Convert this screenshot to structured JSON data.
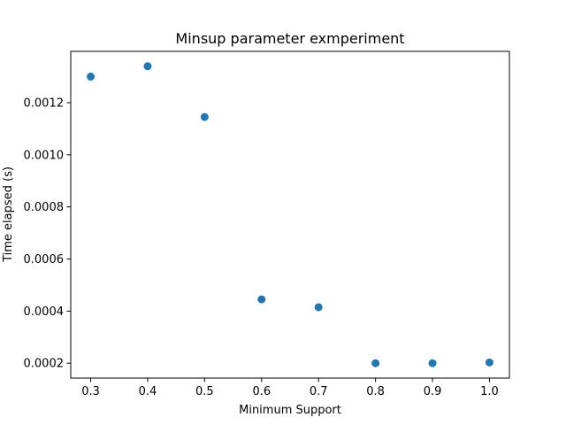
{
  "chart_data": {
    "type": "scatter",
    "title": "Minsup parameter exmperiment",
    "xlabel": "Minimum Support",
    "ylabel": "Time elapsed (s)",
    "x": [
      0.3,
      0.4,
      0.5,
      0.6,
      0.7,
      0.8,
      0.9,
      1.0
    ],
    "y": [
      0.0013,
      0.00134,
      0.001145,
      0.000445,
      0.000415,
      0.0002,
      0.0002,
      0.000203
    ],
    "xlim": [
      0.265,
      1.035
    ],
    "ylim": [
      0.000143,
      0.001397
    ],
    "xticks": [
      0.3,
      0.4,
      0.5,
      0.6,
      0.7,
      0.8,
      0.9,
      1.0
    ],
    "xtick_labels": [
      "0.3",
      "0.4",
      "0.5",
      "0.6",
      "0.7",
      "0.8",
      "0.9",
      "1.0"
    ],
    "yticks": [
      0.0002,
      0.0004,
      0.0006,
      0.0008,
      0.001,
      0.0012
    ],
    "ytick_labels": [
      "0.0002",
      "0.0004",
      "0.0006",
      "0.0008",
      "0.0010",
      "0.0012"
    ],
    "grid": false,
    "colors": {
      "marker": "#1f77b4",
      "axes": "#000000"
    }
  }
}
